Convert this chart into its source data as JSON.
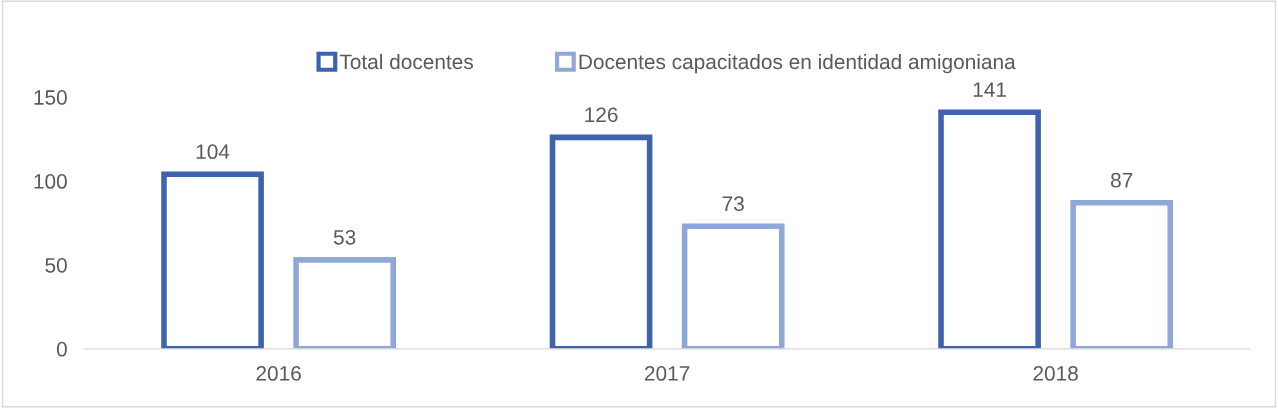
{
  "chart_data": {
    "type": "bar",
    "categories": [
      "2016",
      "2017",
      "2018"
    ],
    "series": [
      {
        "name": "Total docentes",
        "color": "#3f62ad",
        "values": [
          104,
          126,
          141
        ]
      },
      {
        "name": "Docentes capacitados en identidad amigoniana",
        "color": "#8fa8d8",
        "values": [
          53,
          73,
          87
        ]
      }
    ],
    "ylim": [
      0,
      150
    ],
    "yticks": [
      0,
      50,
      100,
      150
    ],
    "grid": false,
    "legend": "top",
    "data_labels": true
  }
}
